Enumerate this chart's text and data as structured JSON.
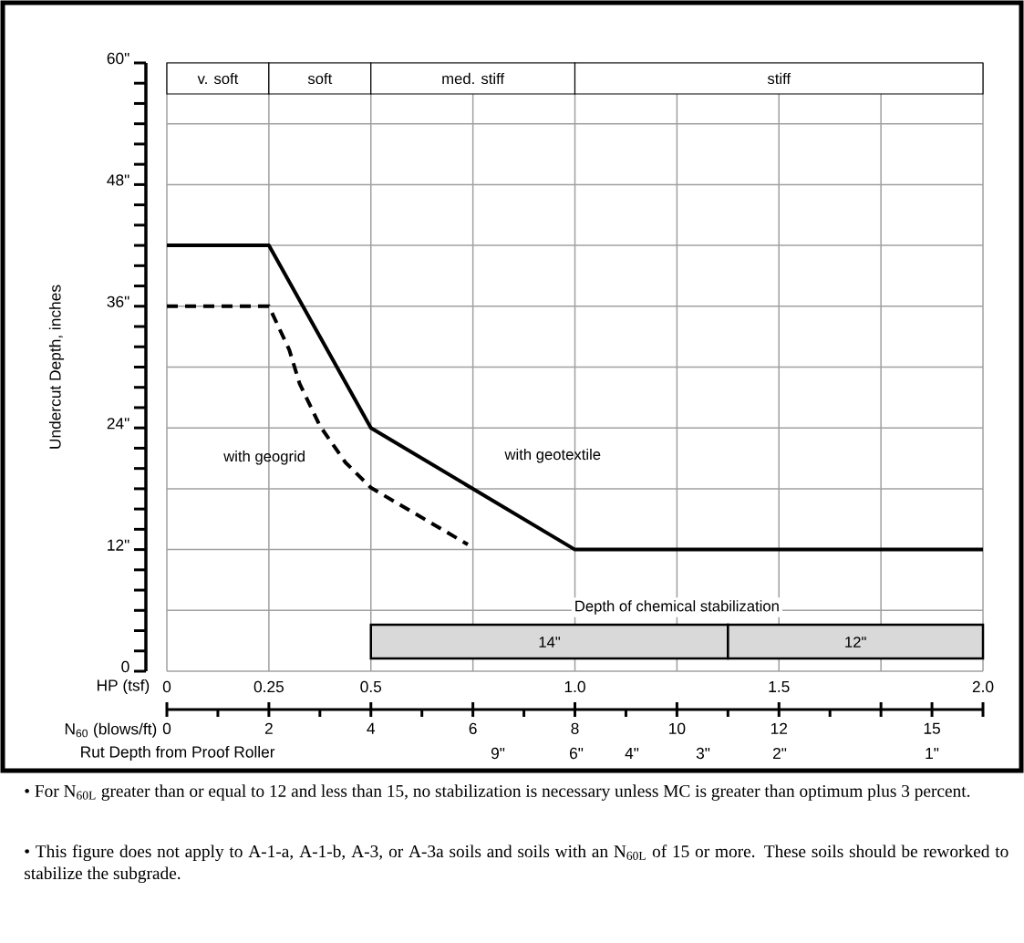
{
  "chart_data": {
    "type": "line",
    "xlabel": "N$_{60}$ (blows/ft)",
    "ylabel": "Undercut Depth, inches",
    "x2label": "HP (tsf)",
    "xlim": [
      0,
      16
    ],
    "xticks": [
      0,
      2,
      4,
      6,
      8,
      10,
      12,
      {
        "value": 14,
        "label": null
      },
      15,
      {
        "value": 16,
        "label": null
      }
    ],
    "x2lim": [
      0,
      2
    ],
    "x2ticks": [
      0,
      0.25,
      0.5,
      {
        "value": 1,
        "label": "1.0"
      },
      1.5,
      {
        "value": 2,
        "label": "2.0"
      }
    ],
    "ylim": [
      0,
      60
    ],
    "yticks": [
      0,
      {
        "value": 6,
        "label": null
      },
      {
        "value": 12,
        "label": "12\""
      },
      {
        "value": 18,
        "label": null
      },
      {
        "value": 24,
        "label": "24\""
      },
      {
        "value": 30,
        "label": null
      },
      {
        "value": 36,
        "label": "36\""
      },
      {
        "value": 42,
        "label": null
      },
      {
        "value": 48,
        "label": "48\""
      },
      {
        "value": 54,
        "label": null
      },
      {
        "value": 60,
        "label": "60\""
      }
    ],
    "grid": true,
    "series": [
      {
        "name": "with geotextile",
        "color": "#000000",
        "line_style": "solid",
        "x": [
          0,
          2,
          4,
          8,
          16
        ],
        "values": [
          42,
          42,
          24,
          12,
          12
        ]
      },
      {
        "name": "with geogrid",
        "color": "#000000",
        "line_style": "dashed",
        "x": [
          0,
          2,
          2.4,
          2.6,
          3,
          3.5,
          4,
          5.9
        ],
        "values": [
          36,
          36,
          31.7,
          28.4,
          24.2,
          20.6,
          18.1,
          12.5
        ]
      }
    ],
    "bands": [
      {
        "axis": "x",
        "from": 0,
        "to": 2,
        "label": "v. soft"
      },
      {
        "axis": "x",
        "from": 2,
        "to": 4,
        "label": "soft"
      },
      {
        "axis": "x",
        "from": 4,
        "to": 8,
        "label": "med. stiff"
      },
      {
        "axis": "x",
        "from": 8,
        "to": 16,
        "label": "stiff"
      },
      {
        "axis": "x",
        "from": 4,
        "to": 11,
        "label": "14\"",
        "color": "#d9d9d9"
      },
      {
        "axis": "x",
        "from": 11,
        "to": 16,
        "label": "12\"",
        "color": "#d9d9d9"
      }
    ],
    "annotations": [
      "Depth of chemical stabilization",
      "Rut Depth from Proof Roller",
      "9\"",
      "6\"",
      "4\"",
      "3\"",
      "2\"",
      "1\"",
      "• For N$_{60L}$ greater than or equal to 12 and less than 15, no stabilization is necessary unless MC is greater than optimum plus 3 percent.",
      "• This figure does not apply to A-1-a, A-1-b, A-3, or A-3a soils and soils with an N$_{60L}$ of 15 or more.  These soils should be reworked to stabilize the subgrade."
    ]
  }
}
